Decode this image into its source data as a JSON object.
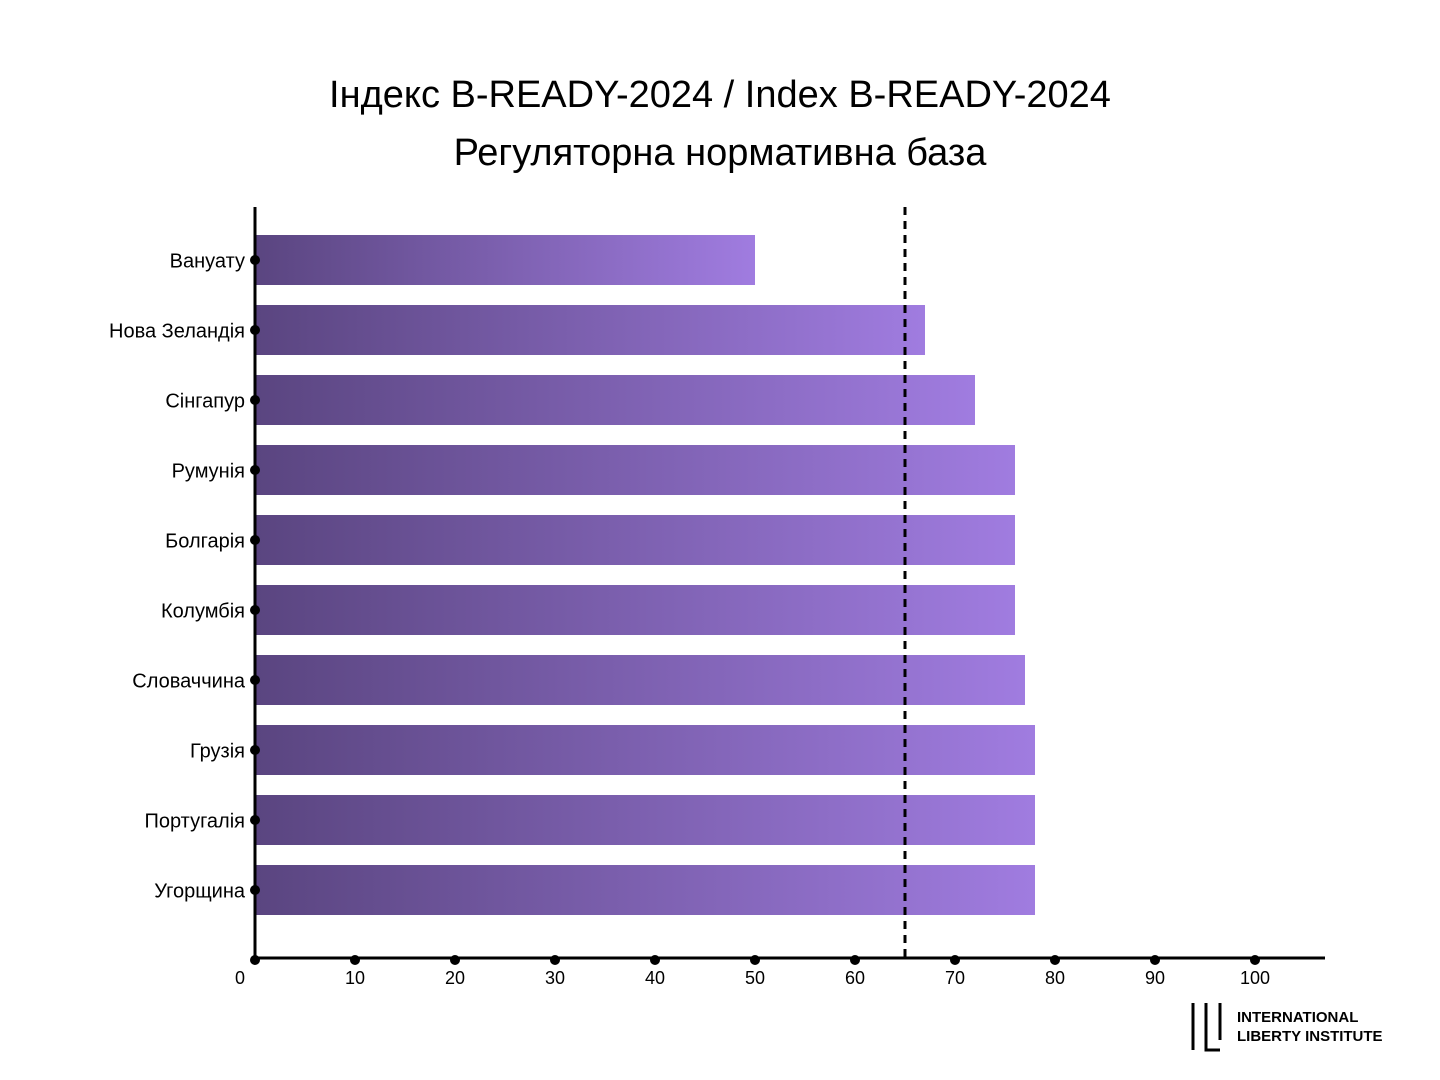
{
  "chart_data": {
    "type": "bar",
    "orientation": "horizontal",
    "title": "Індекс B-READY-2024 / Index B-READY-2024",
    "subtitle": "Регуляторна нормативна база",
    "categories": [
      "Вануату",
      "Нова Зеландія",
      "Сінгапур",
      "Румунія",
      "Болгарія",
      "Колумбія",
      "Словаччина",
      "Грузія",
      "Португалія",
      "Угорщина"
    ],
    "values": [
      50,
      67,
      72,
      76,
      76,
      76,
      77,
      78,
      78,
      78
    ],
    "color_start": "#5a4580",
    "color_end": "#a07ce0",
    "reference_line": 65,
    "xlim": [
      0,
      107
    ],
    "xticks": [
      0,
      10,
      20,
      30,
      40,
      50,
      60,
      70,
      80,
      90,
      100
    ],
    "logo": [
      "INTERNATIONAL",
      "LIBERTY INSTITUTE"
    ]
  }
}
